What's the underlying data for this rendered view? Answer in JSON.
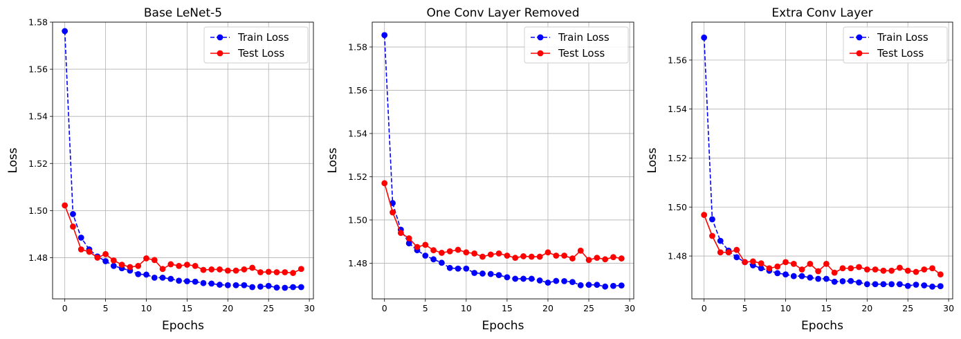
{
  "colors": {
    "train": "#0000ff",
    "test": "#ff0000",
    "grid": "#b0b0b0",
    "axes": "#000000"
  },
  "chart_data": [
    {
      "type": "line",
      "title": "Base LeNet-5",
      "xlabel": "Epochs",
      "ylabel": "Loss",
      "xlim": [
        -1.5,
        30.5
      ],
      "ylim": [
        1.4625,
        1.58
      ],
      "xticks": [
        0,
        5,
        10,
        15,
        20,
        25,
        30
      ],
      "yticks": [
        1.48,
        1.5,
        1.52,
        1.54,
        1.56,
        1.58
      ],
      "grid": true,
      "legend_position": "top-right",
      "x": [
        0,
        1,
        2,
        3,
        4,
        5,
        6,
        7,
        8,
        9,
        10,
        11,
        12,
        13,
        14,
        15,
        16,
        17,
        18,
        19,
        20,
        21,
        22,
        23,
        24,
        25,
        26,
        27,
        28,
        29
      ],
      "series": [
        {
          "name": "Train Loss",
          "style": "dashed",
          "color": "#0000ff",
          "values": [
            1.5762,
            1.4985,
            1.4885,
            1.4835,
            1.4805,
            1.4785,
            1.4765,
            1.4755,
            1.4745,
            1.473,
            1.4728,
            1.4715,
            1.4715,
            1.471,
            1.4702,
            1.47,
            1.4698,
            1.4692,
            1.469,
            1.4685,
            1.4683,
            1.4683,
            1.4683,
            1.4675,
            1.4677,
            1.468,
            1.4673,
            1.4672,
            1.4675,
            1.4675
          ]
        },
        {
          "name": "Test Loss",
          "style": "solid",
          "color": "#ff0000",
          "values": [
            1.5022,
            1.4932,
            1.4835,
            1.4825,
            1.48,
            1.4815,
            1.4788,
            1.477,
            1.476,
            1.4765,
            1.4797,
            1.479,
            1.4752,
            1.4772,
            1.4765,
            1.477,
            1.4765,
            1.4748,
            1.475,
            1.475,
            1.4745,
            1.4745,
            1.475,
            1.4757,
            1.4738,
            1.474,
            1.4738,
            1.4738,
            1.4735,
            1.4752
          ]
        }
      ]
    },
    {
      "type": "line",
      "title": "One Conv Layer Removed",
      "xlabel": "Epochs",
      "ylabel": "Loss",
      "xlim": [
        -1.5,
        30.5
      ],
      "ylim": [
        1.4635,
        1.5915
      ],
      "xticks": [
        0,
        5,
        10,
        15,
        20,
        25,
        30
      ],
      "yticks": [
        1.48,
        1.5,
        1.52,
        1.54,
        1.56,
        1.58
      ],
      "grid": true,
      "legend_position": "top-right",
      "x": [
        0,
        1,
        2,
        3,
        4,
        5,
        6,
        7,
        8,
        9,
        10,
        11,
        12,
        13,
        14,
        15,
        16,
        17,
        18,
        19,
        20,
        21,
        22,
        23,
        24,
        25,
        26,
        27,
        28,
        29
      ],
      "series": [
        {
          "name": "Train Loss",
          "style": "dashed",
          "color": "#0000ff",
          "values": [
            1.5855,
            1.5078,
            1.4955,
            1.4892,
            1.486,
            1.4835,
            1.4818,
            1.4802,
            1.4778,
            1.4775,
            1.4775,
            1.4755,
            1.4752,
            1.475,
            1.4745,
            1.4735,
            1.4728,
            1.4728,
            1.4728,
            1.472,
            1.471,
            1.4718,
            1.4717,
            1.4713,
            1.4698,
            1.47,
            1.47,
            1.4692,
            1.4695,
            1.4697
          ]
        },
        {
          "name": "Test Loss",
          "style": "solid",
          "color": "#ff0000",
          "values": [
            1.517,
            1.5035,
            1.494,
            1.4915,
            1.4875,
            1.4885,
            1.486,
            1.4848,
            1.4855,
            1.4862,
            1.485,
            1.4845,
            1.483,
            1.484,
            1.4845,
            1.4835,
            1.4825,
            1.4832,
            1.483,
            1.483,
            1.485,
            1.4835,
            1.4835,
            1.4822,
            1.4858,
            1.4815,
            1.4825,
            1.4818,
            1.4828,
            1.4822
          ]
        }
      ]
    },
    {
      "type": "line",
      "title": "Extra Conv Layer",
      "xlabel": "Epochs",
      "ylabel": "Loss",
      "xlim": [
        -1.5,
        30.5
      ],
      "ylim": [
        1.4625,
        1.5755
      ],
      "xticks": [
        0,
        5,
        10,
        15,
        20,
        25,
        30
      ],
      "yticks": [
        1.48,
        1.5,
        1.52,
        1.54,
        1.56
      ],
      "grid": true,
      "legend_position": "top-right",
      "x": [
        0,
        1,
        2,
        3,
        4,
        5,
        6,
        7,
        8,
        9,
        10,
        11,
        12,
        13,
        14,
        15,
        16,
        17,
        18,
        19,
        20,
        21,
        22,
        23,
        24,
        25,
        26,
        27,
        28,
        29
      ],
      "series": [
        {
          "name": "Train Loss",
          "style": "dashed",
          "color": "#0000ff",
          "values": [
            1.5692,
            1.495,
            1.4862,
            1.4822,
            1.4795,
            1.4775,
            1.4762,
            1.475,
            1.474,
            1.473,
            1.4725,
            1.4718,
            1.4718,
            1.4712,
            1.4707,
            1.4707,
            1.4695,
            1.4697,
            1.4698,
            1.4692,
            1.4685,
            1.4685,
            1.4685,
            1.4685,
            1.4685,
            1.4678,
            1.4683,
            1.468,
            1.4675,
            1.4677
          ]
        },
        {
          "name": "Test Loss",
          "style": "solid",
          "color": "#ff0000",
          "values": [
            1.4968,
            1.4882,
            1.4815,
            1.4815,
            1.4825,
            1.4775,
            1.4778,
            1.477,
            1.475,
            1.4757,
            1.4775,
            1.4768,
            1.4745,
            1.4768,
            1.4738,
            1.4768,
            1.4732,
            1.475,
            1.475,
            1.4755,
            1.4745,
            1.4745,
            1.474,
            1.474,
            1.4752,
            1.474,
            1.4735,
            1.4745,
            1.475,
            1.4725
          ]
        }
      ]
    }
  ]
}
